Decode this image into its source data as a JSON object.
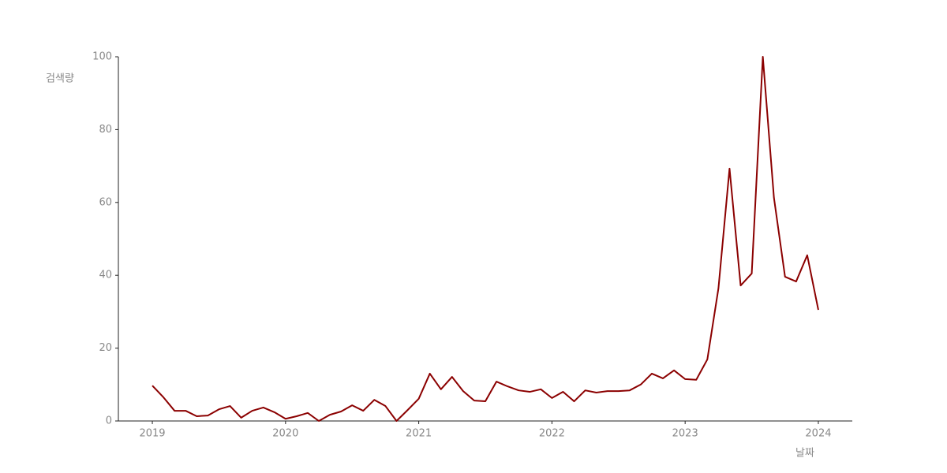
{
  "chart_data": {
    "type": "line",
    "x_label": "날짜",
    "y_label": "검색량",
    "x": [
      2019,
      2019.0833,
      2019.1667,
      2019.25,
      2019.3333,
      2019.4167,
      2019.5,
      2019.5833,
      2019.6667,
      2019.75,
      2019.8333,
      2019.9167,
      2020,
      2020.0833,
      2020.1667,
      2020.25,
      2020.3333,
      2020.4167,
      2020.5,
      2020.5833,
      2020.6667,
      2020.75,
      2020.8333,
      2020.9167,
      2021,
      2021.0833,
      2021.1667,
      2021.25,
      2021.3333,
      2021.4167,
      2021.5,
      2021.5833,
      2021.6667,
      2021.75,
      2021.8333,
      2021.9167,
      2022,
      2022.0833,
      2022.1667,
      2022.25,
      2022.3333,
      2022.4167,
      2022.5,
      2022.5833,
      2022.6667,
      2022.75,
      2022.8333,
      2022.9167,
      2023,
      2023.0833,
      2023.1667,
      2023.25,
      2023.3333,
      2023.4167,
      2023.5,
      2023.5833,
      2023.6667,
      2023.75,
      2023.8333,
      2023.9167,
      2024
    ],
    "series": [
      {
        "color": "#8b0000",
        "values": [
          9.7,
          6.5,
          2.8,
          2.8,
          1.3,
          1.5,
          3.2,
          4.1,
          0.9,
          2.8,
          3.7,
          2.4,
          0.6,
          1.3,
          2.2,
          0,
          1.7,
          2.6,
          4.3,
          2.8,
          5.8,
          4.1,
          0,
          3.0,
          6.1,
          13,
          8.7,
          12.1,
          8.2,
          5.6,
          5.4,
          10.8,
          9.5,
          8.4,
          8.0,
          8.7,
          6.3,
          8.0,
          5.4,
          8.4,
          7.8,
          8.2,
          8.2,
          8.4,
          10,
          13,
          11.7,
          13.9,
          11.5,
          11.3,
          16.9,
          36.4,
          69.3,
          37.2,
          40.5,
          100,
          61.3,
          39.6,
          38.3,
          45.5,
          30.5
        ]
      }
    ],
    "xlim": [
      2018.745,
      2024.255
    ],
    "xticks": [
      2019,
      2020,
      2021,
      2022,
      2023,
      2024
    ],
    "ylim": [
      0,
      100
    ],
    "yticks": [
      0,
      20,
      40,
      60,
      80,
      100
    ],
    "grid": false
  }
}
